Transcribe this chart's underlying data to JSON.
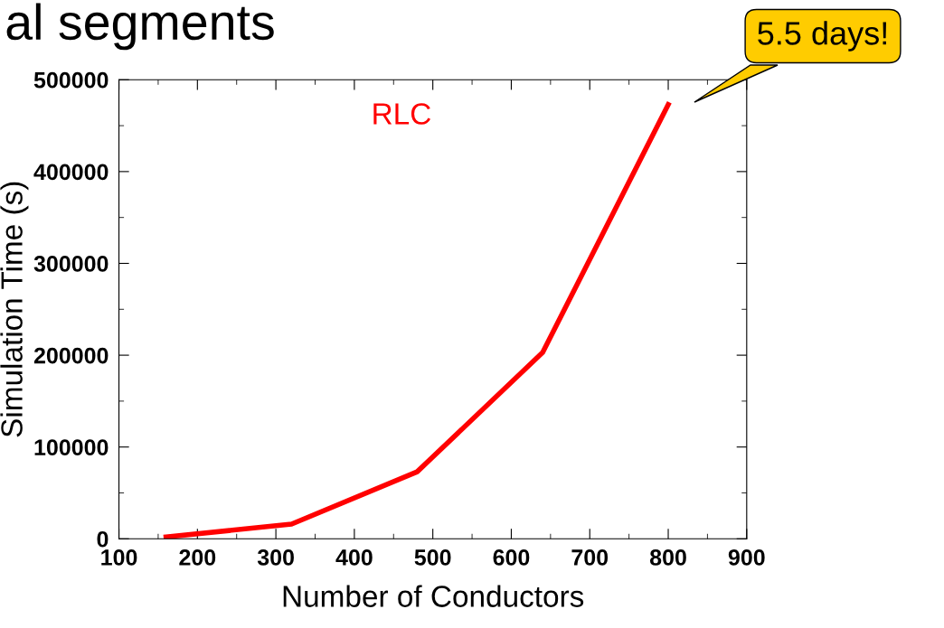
{
  "chart_data": {
    "type": "line",
    "title": "al segments",
    "xlabel": "Number of Conductors",
    "ylabel": "Simulation Time (s)",
    "x": [
      160,
      320,
      480,
      640,
      800
    ],
    "series": [
      {
        "name": "RLC",
        "color": "#ff0000",
        "values": [
          2000,
          16000,
          73000,
          203000,
          473000
        ]
      }
    ],
    "xlim": [
      100,
      900
    ],
    "xticks": [
      100,
      200,
      300,
      400,
      500,
      600,
      700,
      800,
      900
    ],
    "ylim": [
      0,
      500000
    ],
    "yticks": [
      0,
      100000,
      200000,
      300000,
      400000,
      500000
    ],
    "annotations": [
      "5.5 days!"
    ],
    "grid": false,
    "legend": false,
    "marker": "none",
    "line_style": "solid"
  }
}
